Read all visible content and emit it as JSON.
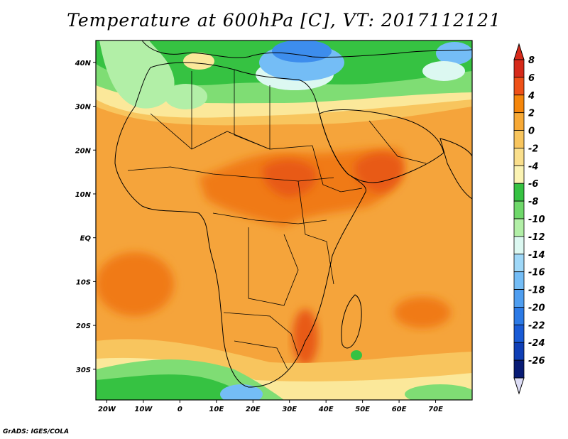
{
  "title": "Temperature at 600hPa [C], VT: 2017112121",
  "credit": "GrADS: IGES/COLA",
  "map": {
    "lon_range": [
      -23,
      80
    ],
    "lat_range": [
      -37,
      45
    ],
    "lat_ticks": [
      {
        "value": 40,
        "label": "40N"
      },
      {
        "value": 30,
        "label": "30N"
      },
      {
        "value": 20,
        "label": "20N"
      },
      {
        "value": 10,
        "label": "10N"
      },
      {
        "value": 0,
        "label": "EQ"
      },
      {
        "value": -10,
        "label": "10S"
      },
      {
        "value": -20,
        "label": "20S"
      },
      {
        "value": -30,
        "label": "30S"
      }
    ],
    "lon_ticks": [
      {
        "value": -20,
        "label": "20W"
      },
      {
        "value": -10,
        "label": "10W"
      },
      {
        "value": 0,
        "label": "0"
      },
      {
        "value": 10,
        "label": "10E"
      },
      {
        "value": 20,
        "label": "20E"
      },
      {
        "value": 30,
        "label": "30E"
      },
      {
        "value": 40,
        "label": "40E"
      },
      {
        "value": 50,
        "label": "50E"
      },
      {
        "value": 60,
        "label": "60E"
      },
      {
        "value": 70,
        "label": "70E"
      }
    ]
  },
  "colorbar": {
    "levels": [
      {
        "label": "8",
        "color": "#d62a1a"
      },
      {
        "label": "6",
        "color": "#ee5118"
      },
      {
        "label": "4",
        "color": "#f5860b"
      },
      {
        "label": "2",
        "color": "#f7a936"
      },
      {
        "label": "0",
        "color": "#f8c55e"
      },
      {
        "label": "-2",
        "color": "#fadf8c"
      },
      {
        "label": "-4",
        "color": "#fbf3b3"
      },
      {
        "label": "-6",
        "color": "#36c242"
      },
      {
        "label": "-8",
        "color": "#6fd86a"
      },
      {
        "label": "-10",
        "color": "#b2efa7"
      },
      {
        "label": "-12",
        "color": "#dcf8f1"
      },
      {
        "label": "-14",
        "color": "#9fd8f8"
      },
      {
        "label": "-16",
        "color": "#74bdf6"
      },
      {
        "label": "-18",
        "color": "#4f9ef0"
      },
      {
        "label": "-20",
        "color": "#2c7ae6"
      },
      {
        "label": "-22",
        "color": "#195bd6"
      },
      {
        "label": "-24",
        "color": "#0f3fb6"
      },
      {
        "label": "-26",
        "color": "#081b75"
      }
    ],
    "top_arrow_color": "#d62a1a",
    "bottom_arrow_color": "#dcdcf5"
  },
  "colors": {
    "warm_base": "#f5a43b",
    "hot": "#f07a17",
    "hottest": "#e85a14",
    "mild": "#f8c55e",
    "cool_yellow": "#fbe89a",
    "green_dark": "#36c242",
    "green_light": "#7fdd74",
    "green_pale": "#b2efa7",
    "cyan_pale": "#dcf8f1",
    "blue_light": "#74bdf6",
    "blue_mid": "#3d8ded",
    "coast": "#000000"
  }
}
